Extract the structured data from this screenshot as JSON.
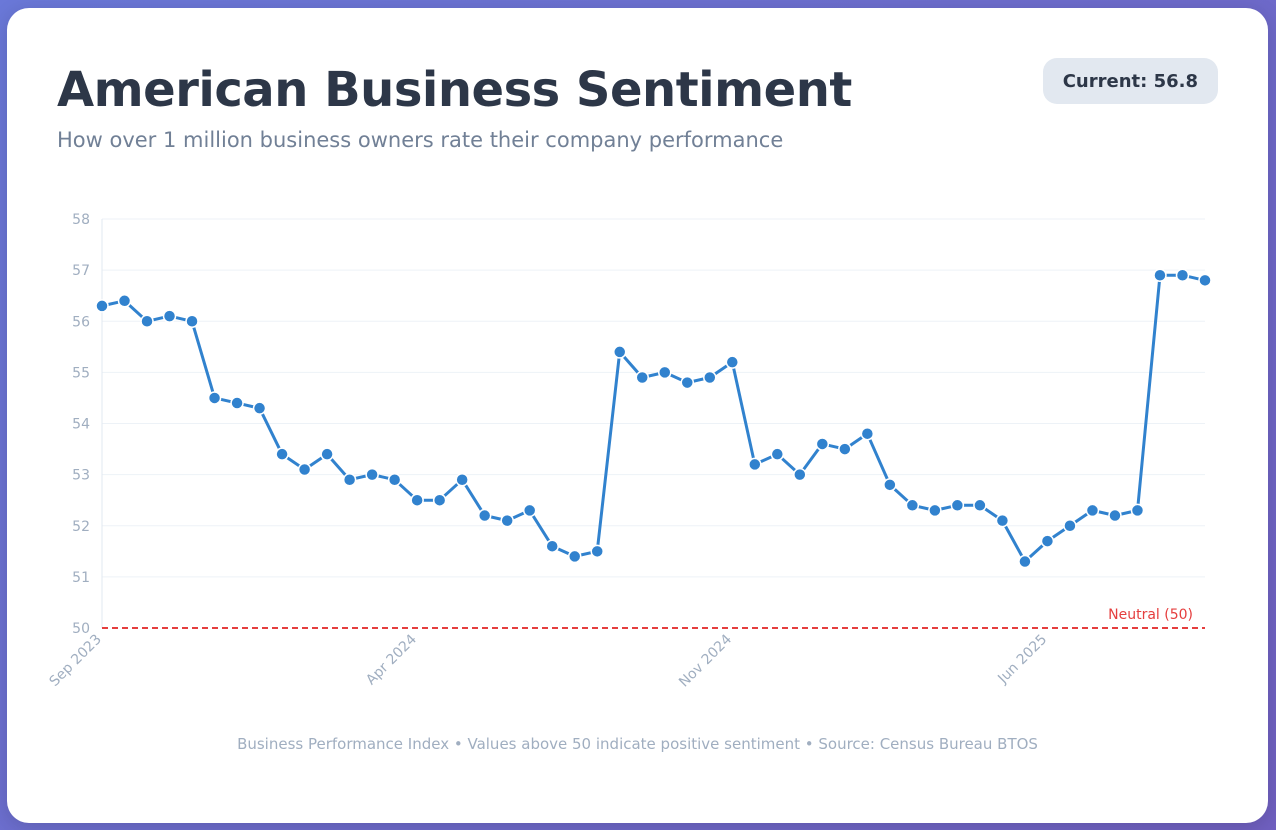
{
  "header": {
    "title": "American Business Sentiment",
    "subtitle": "How over 1 million business owners rate their company performance",
    "badge": "Current: 56.8"
  },
  "footer": {
    "text": "Business Performance Index • Values above 50 indicate positive sentiment • Source: Census Bureau BTOS"
  },
  "colors": {
    "line": "#3182ce",
    "neutral": "#e53e3e",
    "grid": "#edf2f7",
    "tick": "#a0aec0"
  },
  "chart_data": {
    "type": "line",
    "title": "American Business Sentiment",
    "xlabel": "",
    "ylabel": "",
    "ylim": [
      50,
      58
    ],
    "yticks": [
      50,
      51,
      52,
      53,
      54,
      55,
      56,
      57,
      58
    ],
    "x_tick_labels": [
      {
        "index": 0,
        "label": "Sep 2023"
      },
      {
        "index": 14,
        "label": "Apr 2024"
      },
      {
        "index": 28,
        "label": "Nov 2024"
      },
      {
        "index": 42,
        "label": "Jun 2025"
      }
    ],
    "reference_line": {
      "value": 50,
      "label": "Neutral (50)"
    },
    "series": [
      {
        "name": "Business Performance Index",
        "values": [
          56.3,
          56.4,
          56.0,
          56.1,
          56.0,
          54.5,
          54.4,
          54.3,
          53.4,
          53.1,
          53.4,
          52.9,
          53.0,
          52.9,
          52.5,
          52.5,
          52.9,
          52.2,
          52.1,
          52.3,
          51.6,
          51.4,
          51.5,
          55.4,
          54.9,
          55.0,
          54.8,
          54.9,
          55.2,
          53.2,
          53.4,
          53.0,
          53.6,
          53.5,
          53.8,
          52.8,
          52.4,
          52.3,
          52.4,
          52.4,
          52.1,
          51.3,
          51.7,
          52.0,
          52.3,
          52.2,
          52.3,
          56.9,
          56.9,
          56.8
        ]
      }
    ]
  }
}
